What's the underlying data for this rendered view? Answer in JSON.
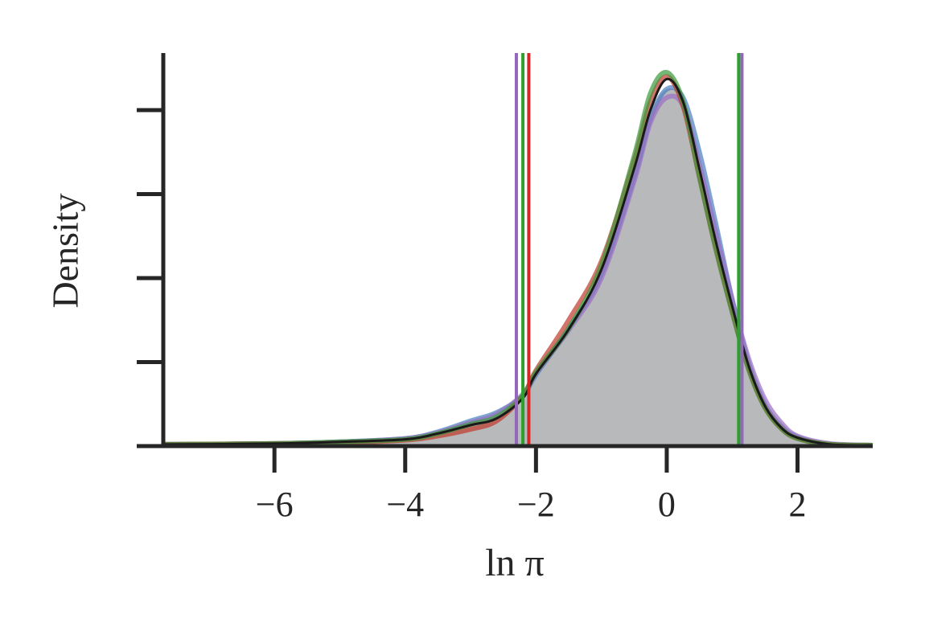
{
  "chart_data": {
    "type": "density",
    "x_label": "ln π",
    "y_label": "Density",
    "x": [
      -7.7,
      -6,
      -5,
      -4,
      -3.5,
      -3,
      -2.6,
      -2.2,
      -2,
      -1.5,
      -1,
      -0.5,
      -0.25,
      0,
      0.25,
      0.5,
      0.75,
      1,
      1.25,
      1.5,
      1.75,
      2,
      2.5,
      3.15
    ],
    "series": [
      {
        "color": "#b8b9bb",
        "fill": true,
        "values": [
          0.002,
          0.003,
          0.005,
          0.009,
          0.017,
          0.028,
          0.036,
          0.058,
          0.085,
          0.135,
          0.205,
          0.325,
          0.395,
          0.425,
          0.41,
          0.335,
          0.25,
          0.17,
          0.1,
          0.05,
          0.024,
          0.011,
          0.002,
          0.001
        ]
      },
      {
        "color": "#4a7fc1",
        "values": [
          0.002,
          0.003,
          0.005,
          0.009,
          0.017,
          0.03,
          0.04,
          0.06,
          0.085,
          0.14,
          0.205,
          0.32,
          0.39,
          0.425,
          0.415,
          0.35,
          0.265,
          0.175,
          0.1,
          0.05,
          0.024,
          0.011,
          0.002,
          0.001
        ]
      },
      {
        "color": "#9b6fc4",
        "values": [
          0.002,
          0.003,
          0.005,
          0.009,
          0.016,
          0.028,
          0.038,
          0.062,
          0.087,
          0.138,
          0.2,
          0.315,
          0.385,
          0.415,
          0.405,
          0.335,
          0.255,
          0.175,
          0.105,
          0.056,
          0.028,
          0.012,
          0.003,
          0.001
        ]
      },
      {
        "color": "#c0392b",
        "values": [
          0.002,
          0.003,
          0.004,
          0.007,
          0.012,
          0.02,
          0.03,
          0.06,
          0.09,
          0.15,
          0.22,
          0.34,
          0.41,
          0.44,
          0.405,
          0.32,
          0.235,
          0.16,
          0.092,
          0.046,
          0.021,
          0.009,
          0.002,
          0.001
        ]
      },
      {
        "color": "#3a9a3a",
        "values": [
          0.002,
          0.003,
          0.005,
          0.008,
          0.015,
          0.026,
          0.035,
          0.06,
          0.088,
          0.14,
          0.215,
          0.345,
          0.42,
          0.445,
          0.41,
          0.32,
          0.235,
          0.16,
          0.092,
          0.046,
          0.021,
          0.009,
          0.002,
          0.001
        ]
      },
      {
        "color": "#1a1a1a",
        "values": [
          0.002,
          0.003,
          0.005,
          0.008,
          0.015,
          0.025,
          0.033,
          0.057,
          0.086,
          0.139,
          0.21,
          0.33,
          0.4,
          0.437,
          0.41,
          0.33,
          0.244,
          0.167,
          0.096,
          0.048,
          0.022,
          0.01,
          0.002,
          0.001
        ]
      }
    ],
    "vlines": [
      {
        "x": -2.3,
        "color": "#9467bd"
      },
      {
        "x": -2.2,
        "color": "#2ca02c"
      },
      {
        "x": -2.11,
        "color": "#d62728"
      },
      {
        "x": 1.15,
        "color": "#9467bd"
      },
      {
        "x": 1.1,
        "color": "#2ca02c"
      }
    ],
    "xlim": [
      -7.7,
      3.15
    ],
    "ylim": [
      0,
      0.468
    ],
    "xticks": [
      {
        "value": -6,
        "label": "−6"
      },
      {
        "value": -4,
        "label": "−4"
      },
      {
        "value": -2,
        "label": "−2"
      },
      0,
      2
    ],
    "yticks": [
      0,
      0.1,
      0.2,
      0.3,
      0.4
    ]
  }
}
